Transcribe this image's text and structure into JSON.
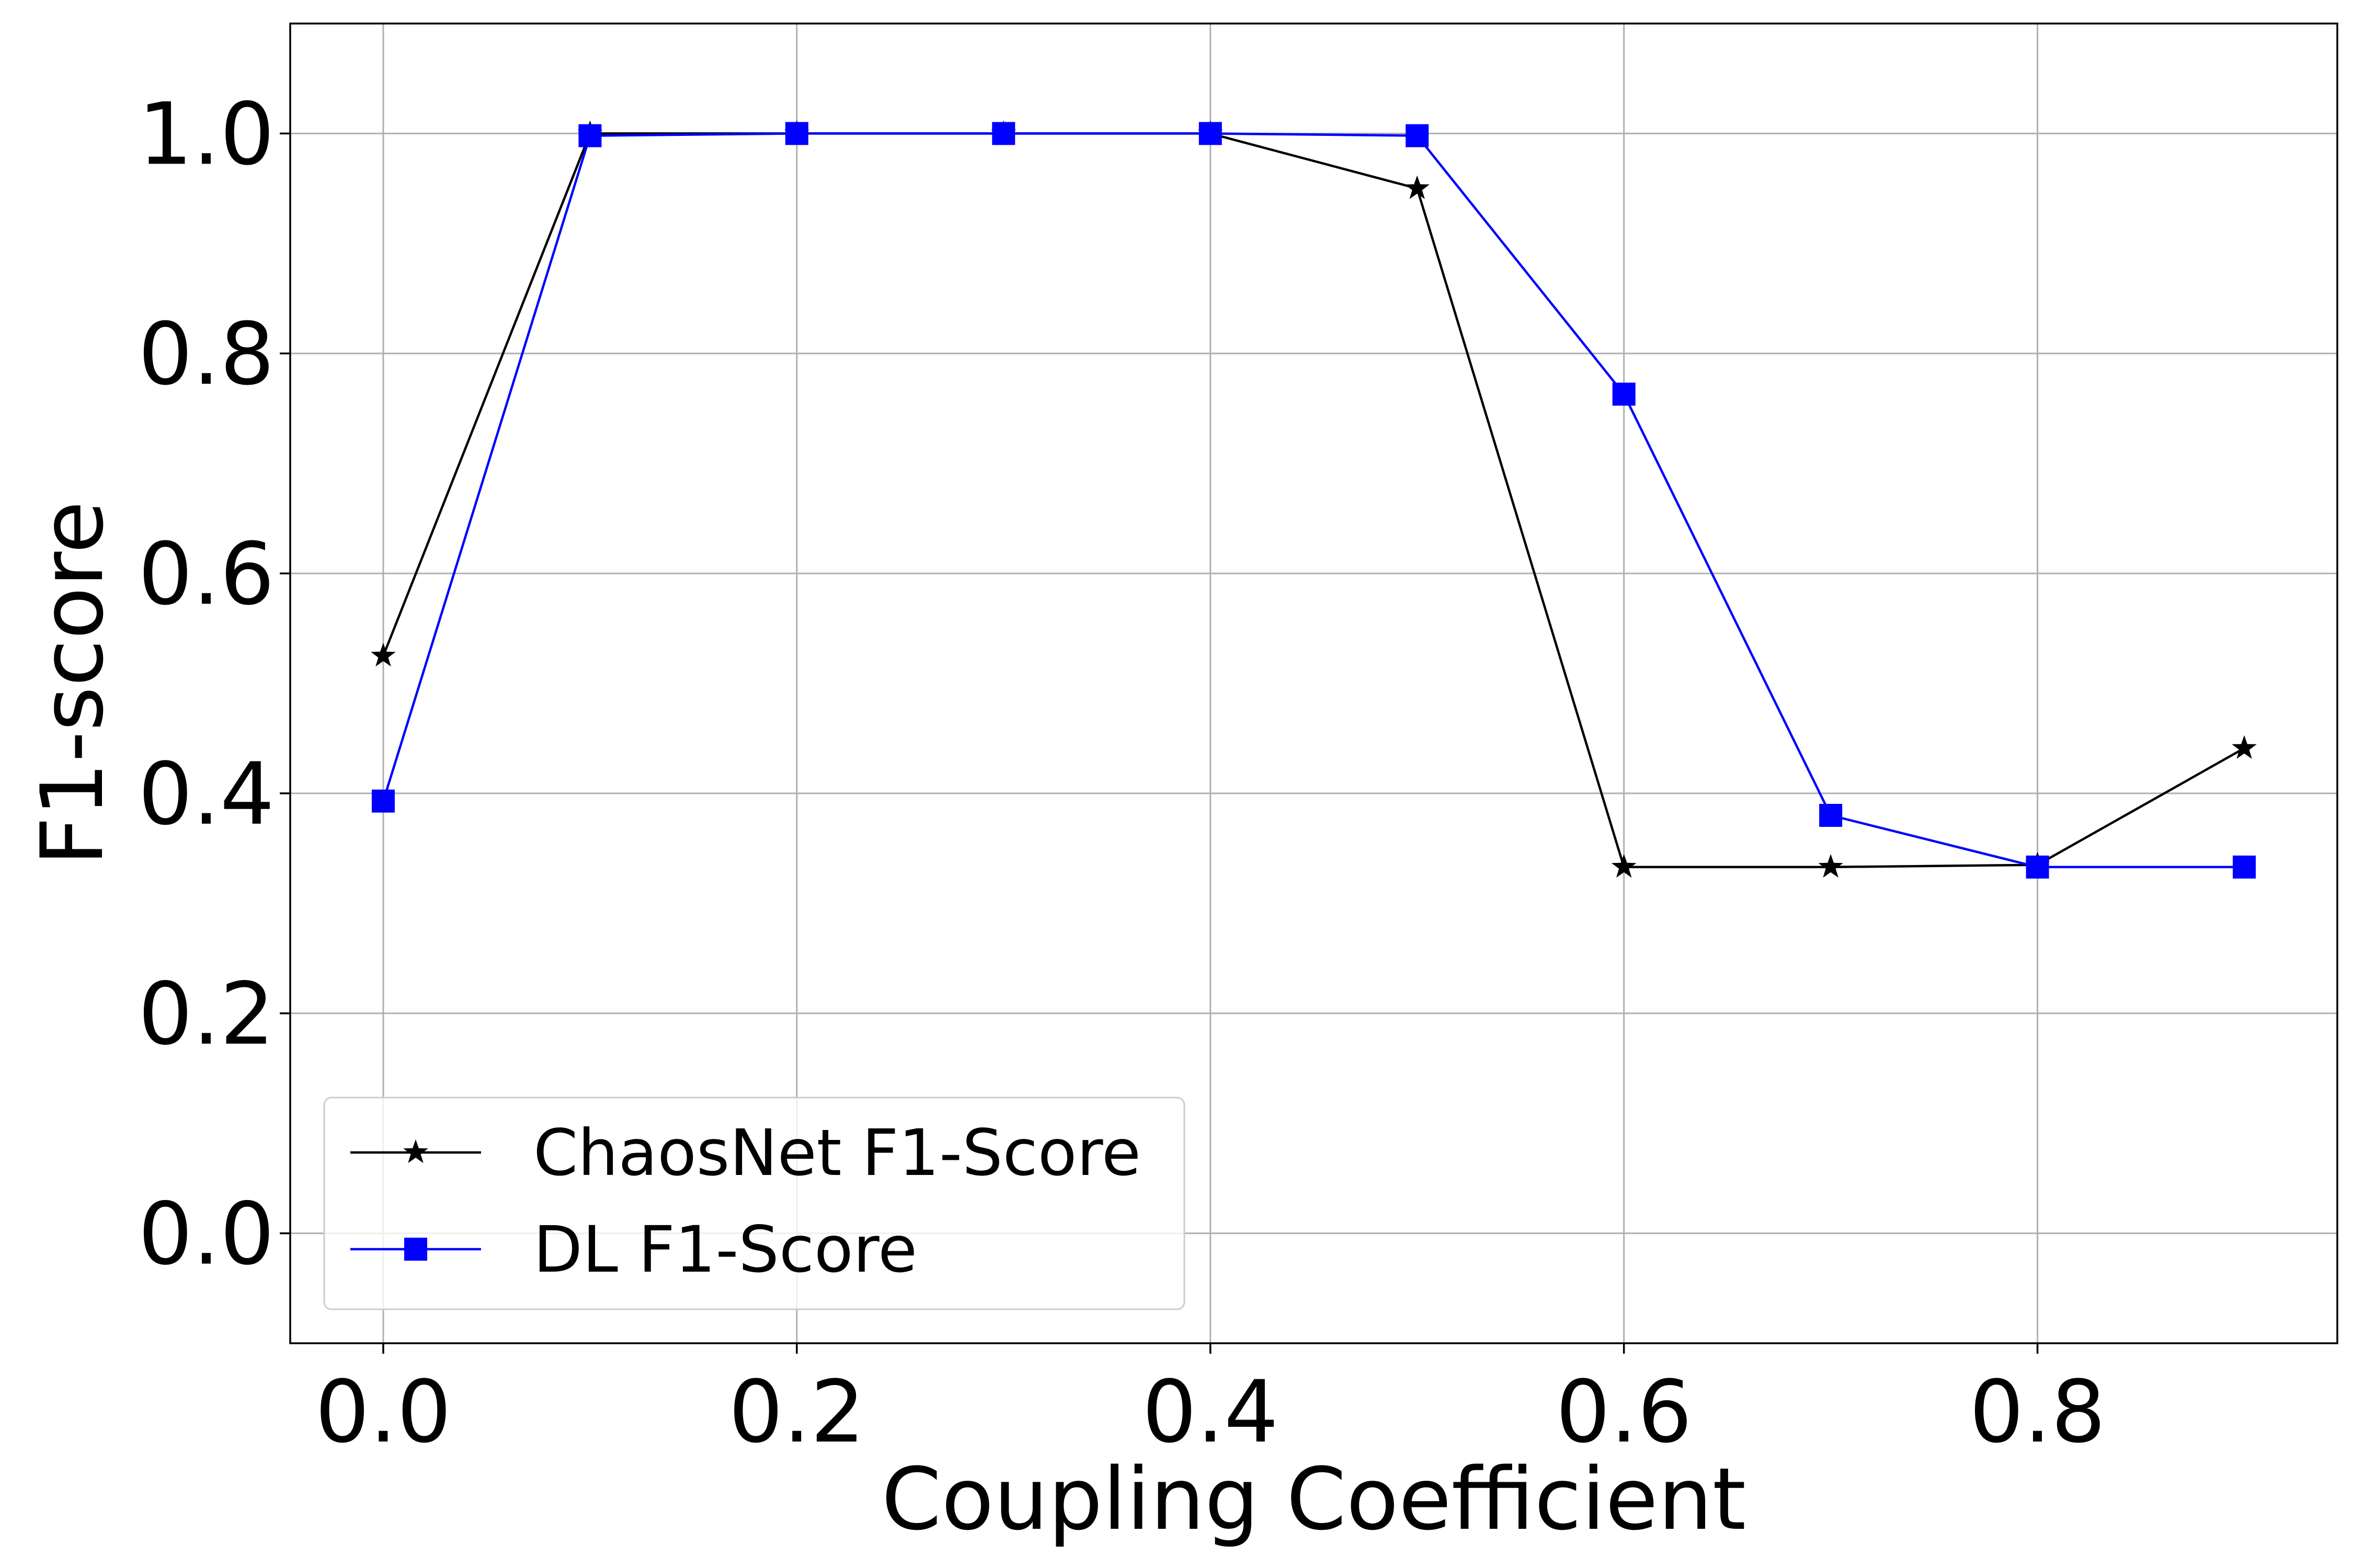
{
  "chart_data": {
    "type": "line",
    "title": "",
    "xlabel": "Coupling Coefficient",
    "ylabel": "F1-score",
    "xlim": [
      -0.045,
      0.945
    ],
    "ylim": [
      -0.1,
      1.1
    ],
    "xticks": [
      0.0,
      0.2,
      0.4,
      0.6,
      0.8
    ],
    "xtick_labels": [
      "0.0",
      "0.2",
      "0.4",
      "0.6",
      "0.8"
    ],
    "yticks": [
      0.0,
      0.2,
      0.4,
      0.6,
      0.8,
      1.0
    ],
    "ytick_labels": [
      "0.0",
      "0.2",
      "0.4",
      "0.6",
      "0.8",
      "1.0"
    ],
    "grid": true,
    "legend_position": "lower-left",
    "x": [
      0.0,
      0.1,
      0.2,
      0.3,
      0.4,
      0.5,
      0.6,
      0.7,
      0.8,
      0.9
    ],
    "series": [
      {
        "name": "ChaosNet F1-Score",
        "color": "#000000",
        "marker": "star",
        "values": [
          0.525,
          1.0,
          1.0,
          1.0,
          1.0,
          0.95,
          0.333,
          0.333,
          0.335,
          0.441
        ]
      },
      {
        "name": "DL F1-Score",
        "color": "#0000ff",
        "marker": "square",
        "values": [
          0.393,
          0.998,
          1.0,
          1.0,
          1.0,
          0.998,
          0.763,
          0.38,
          0.333,
          0.333
        ]
      }
    ]
  }
}
